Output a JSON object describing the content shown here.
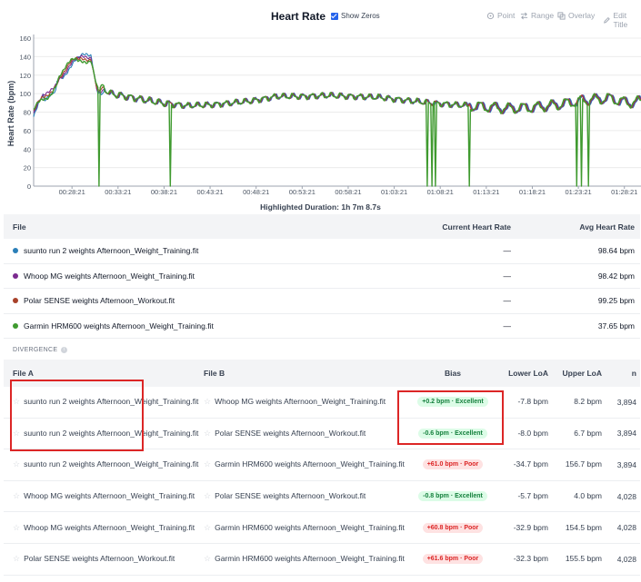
{
  "header": {
    "title": "Heart Rate",
    "show_zeros_label": "Show Zeros",
    "tools": [
      {
        "label": "Point",
        "icon": "crosshair-icon"
      },
      {
        "label": "Range",
        "icon": "range-icon"
      },
      {
        "label": "Overlay",
        "icon": "overlay-icon"
      },
      {
        "label": "Edit Title",
        "icon": "edit-icon"
      }
    ]
  },
  "chart_data": {
    "type": "line",
    "ylabel": "Heart Rate (bpm)",
    "ylim": [
      0,
      160
    ],
    "yticks": [
      0,
      20,
      40,
      60,
      80,
      100,
      120,
      140,
      160
    ],
    "xticks": [
      "00:28:21",
      "00:33:21",
      "00:38:21",
      "00:43:21",
      "00:48:21",
      "00:53:21",
      "00:58:21",
      "01:03:21",
      "01:08:21",
      "01:13:21",
      "01:18:21",
      "01:23:21",
      "01:28:21"
    ],
    "highlighted_duration": "Highlighted Duration: 1h 7m 8.7s",
    "series_colors": [
      "#2a7fb8",
      "#7b2a8f",
      "#a8412a",
      "#3f9a2f"
    ],
    "baseline": [
      [
        0,
        75
      ],
      [
        2,
        95
      ],
      [
        4,
        125
      ],
      [
        7,
        130
      ],
      [
        9,
        145
      ],
      [
        10,
        110
      ],
      [
        12,
        100
      ],
      [
        16,
        95
      ],
      [
        20,
        90
      ],
      [
        24,
        87
      ],
      [
        28,
        88
      ],
      [
        34,
        92
      ],
      [
        38,
        97
      ],
      [
        42,
        97
      ],
      [
        46,
        98
      ],
      [
        50,
        97
      ],
      [
        54,
        96
      ],
      [
        58,
        93
      ],
      [
        62,
        90
      ],
      [
        66,
        88
      ],
      [
        70,
        86
      ],
      [
        74,
        84
      ],
      [
        78,
        85
      ],
      [
        82,
        88
      ],
      [
        86,
        93
      ],
      [
        90,
        95
      ],
      [
        93,
        90
      ],
      [
        95,
        92
      ]
    ],
    "zero_drops": [
      3.0,
      10.2,
      21.4,
      61.6,
      62.3,
      62.9,
      68.2,
      69.5,
      79.9,
      85.0,
      85.7,
      86.8,
      90.9
    ]
  },
  "files": {
    "headers": {
      "file": "File",
      "current": "Current Heart Rate",
      "avg": "Avg Heart Rate"
    },
    "rows": [
      {
        "name": "suunto run 2 weights Afternoon_Weight_Training.fit",
        "current": "—",
        "avg": "98.64 bpm",
        "color": "#2a7fb8"
      },
      {
        "name": "Whoop MG weights Afternoon_Weight_Training.fit",
        "current": "—",
        "avg": "98.42 bpm",
        "color": "#7b2a8f"
      },
      {
        "name": "Polar SENSE weights Afternoon_Workout.fit",
        "current": "—",
        "avg": "99.25 bpm",
        "color": "#a8412a"
      },
      {
        "name": "Garmin HRM600 weights Afternoon_Weight_Training.fit",
        "current": "—",
        "avg": "37.65 bpm",
        "color": "#3f9a2f"
      }
    ]
  },
  "divergence": {
    "label": "DIVERGENCE",
    "headers": {
      "file_a": "File A",
      "file_b": "File B",
      "bias": "Bias",
      "lower": "Lower LoA",
      "upper": "Upper LoA",
      "n": "n"
    },
    "rows": [
      {
        "a": "suunto run 2 weights Afternoon_Weight_Training.fit",
        "b": "Whoop MG weights Afternoon_Weight_Training.fit",
        "bias": "+0.2 bpm · Excellent",
        "good": true,
        "lower": "-7.8 bpm",
        "upper": "8.2 bpm",
        "n": "3,894"
      },
      {
        "a": "suunto run 2 weights Afternoon_Weight_Training.fit",
        "b": "Polar SENSE weights Afternoon_Workout.fit",
        "bias": "-0.6 bpm · Excellent",
        "good": true,
        "lower": "-8.0 bpm",
        "upper": "6.7 bpm",
        "n": "3,894"
      },
      {
        "a": "suunto run 2 weights Afternoon_Weight_Training.fit",
        "b": "Garmin HRM600 weights Afternoon_Weight_Training.fit",
        "bias": "+61.0 bpm · Poor",
        "good": false,
        "lower": "-34.7 bpm",
        "upper": "156.7 bpm",
        "n": "3,894"
      },
      {
        "a": "Whoop MG weights Afternoon_Weight_Training.fit",
        "b": "Polar SENSE weights Afternoon_Workout.fit",
        "bias": "-0.8 bpm · Excellent",
        "good": true,
        "lower": "-5.7 bpm",
        "upper": "4.0 bpm",
        "n": "4,028"
      },
      {
        "a": "Whoop MG weights Afternoon_Weight_Training.fit",
        "b": "Garmin HRM600 weights Afternoon_Weight_Training.fit",
        "bias": "+60.8 bpm · Poor",
        "good": false,
        "lower": "-32.9 bpm",
        "upper": "154.5 bpm",
        "n": "4,028"
      },
      {
        "a": "Polar SENSE weights Afternoon_Workout.fit",
        "b": "Garmin HRM600 weights Afternoon_Weight_Training.fit",
        "bias": "+61.6 bpm · Poor",
        "good": false,
        "lower": "-32.3 bpm",
        "upper": "155.5 bpm",
        "n": "4,028"
      }
    ]
  }
}
